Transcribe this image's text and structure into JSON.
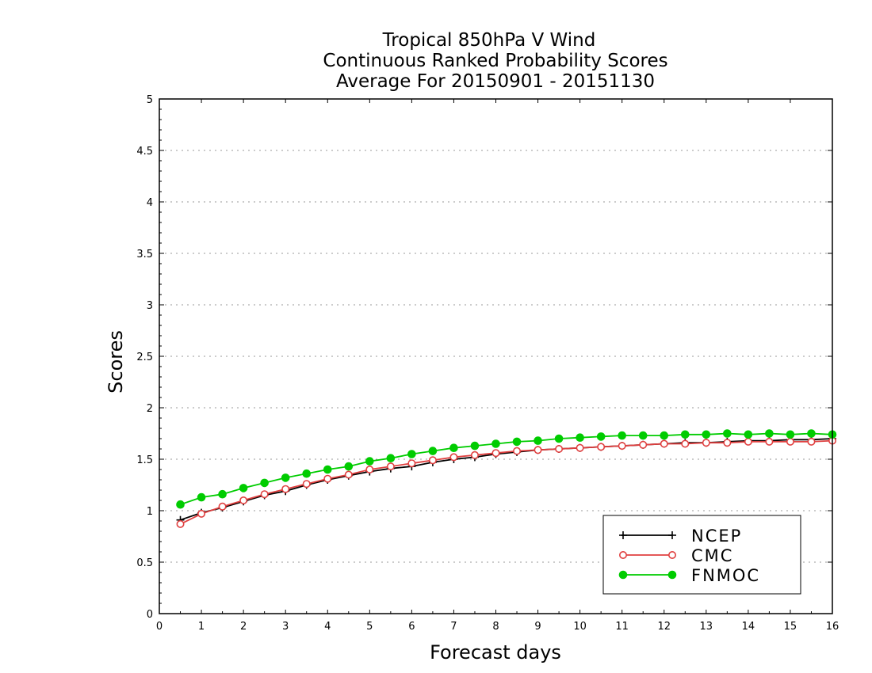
{
  "chart_data": {
    "type": "line",
    "title": [
      "Tropical 850hPa V Wind",
      "Continuous Ranked Probability Scores",
      "Average For 20150901 - 20151130"
    ],
    "xlabel": "Forecast days",
    "ylabel": "Scores",
    "xlim": [
      0,
      16
    ],
    "ylim": [
      0,
      5
    ],
    "x_ticks": [
      "0",
      "1",
      "2",
      "3",
      "4",
      "5",
      "6",
      "7",
      "8",
      "9",
      "10",
      "11",
      "12",
      "13",
      "14",
      "15",
      "16"
    ],
    "y_ticks": [
      "0",
      "0.5",
      "1",
      "1.5",
      "2",
      "2.5",
      "3",
      "3.5",
      "4",
      "4.5",
      "5"
    ],
    "grid": "horizontal dotted",
    "legend_position": "bottom-right",
    "x": [
      0.5,
      1,
      1.5,
      2,
      2.5,
      3,
      3.5,
      4,
      4.5,
      5,
      5.5,
      6,
      6.5,
      7,
      7.5,
      8,
      8.5,
      9,
      9.5,
      10,
      10.5,
      11,
      11.5,
      12,
      12.5,
      13,
      13.5,
      14,
      14.5,
      15,
      15.5,
      16
    ],
    "series": [
      {
        "name": "NCEP",
        "color": "#000000",
        "marker": "plus",
        "values": [
          0.91,
          0.98,
          1.03,
          1.09,
          1.15,
          1.19,
          1.25,
          1.3,
          1.34,
          1.38,
          1.41,
          1.43,
          1.47,
          1.5,
          1.52,
          1.55,
          1.57,
          1.59,
          1.6,
          1.61,
          1.62,
          1.63,
          1.64,
          1.65,
          1.66,
          1.66,
          1.67,
          1.68,
          1.68,
          1.69,
          1.69,
          1.7
        ]
      },
      {
        "name": "CMC",
        "color": "#e04040",
        "marker": "open-circle",
        "values": [
          0.87,
          0.97,
          1.04,
          1.1,
          1.16,
          1.21,
          1.26,
          1.31,
          1.35,
          1.4,
          1.43,
          1.46,
          1.49,
          1.52,
          1.54,
          1.56,
          1.58,
          1.59,
          1.6,
          1.61,
          1.62,
          1.63,
          1.64,
          1.65,
          1.65,
          1.66,
          1.66,
          1.67,
          1.67,
          1.67,
          1.67,
          1.68
        ]
      },
      {
        "name": "FNMOC",
        "color": "#00cc00",
        "marker": "filled-circle",
        "values": [
          1.06,
          1.13,
          1.16,
          1.22,
          1.27,
          1.32,
          1.36,
          1.4,
          1.43,
          1.48,
          1.51,
          1.55,
          1.58,
          1.61,
          1.63,
          1.65,
          1.67,
          1.68,
          1.7,
          1.71,
          1.72,
          1.73,
          1.73,
          1.73,
          1.74,
          1.74,
          1.75,
          1.74,
          1.75,
          1.74,
          1.75,
          1.74
        ]
      }
    ]
  }
}
